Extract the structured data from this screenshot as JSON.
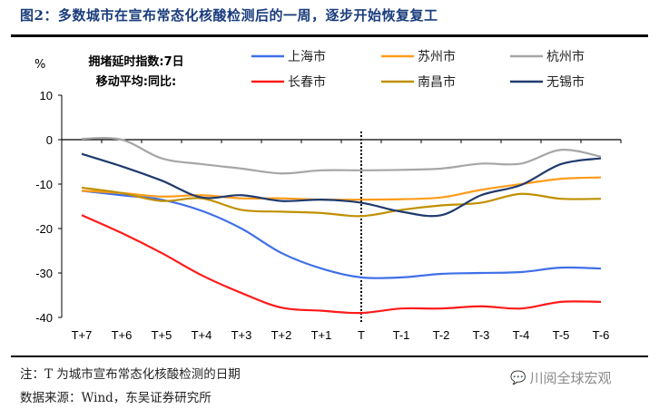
{
  "title": "图2：多数城市在宣布常态化核酸检测后的一周，逐步开始恢复复工",
  "note": "注：T 为城市宣布常态化核酸检测的日期",
  "source": "数据来源：Wind，东吴证券研究所",
  "watermark": {
    "icon": "wechat-icon",
    "icon_glyph": "💬",
    "text": "川阅全球宏观"
  },
  "chart_data": {
    "type": "line",
    "title": "图2：多数城市在宣布常态化核酸检测后的一周，逐步开始恢复复工",
    "ylabel": "%",
    "xlabel": "",
    "indicator_line1": "拥堵延时指数:7日",
    "indicator_line2": "移动平均:同比:",
    "ylim": [
      -40,
      10
    ],
    "yticks": [
      10,
      0,
      -10,
      -20,
      -30,
      -40
    ],
    "ytick_labels": [
      "10",
      "0",
      "-10",
      "-20",
      "-30",
      "-40"
    ],
    "categories": [
      "T+7",
      "T+6",
      "T+5",
      "T+4",
      "T+3",
      "T+2",
      "T+1",
      "T",
      "T-1",
      "T-2",
      "T-3",
      "T-4",
      "T-5",
      "T-6"
    ],
    "reference_line": {
      "category": "T",
      "style": "dotted",
      "color": "#000000"
    },
    "grid": false,
    "legend_position": "top-right",
    "series": [
      {
        "name": "上海市",
        "color": "#3f6fe8",
        "values": [
          -11.5,
          -12.5,
          -13.5,
          -16,
          -20,
          -25.5,
          -29,
          -31,
          -31,
          -30.2,
          -30,
          -29.8,
          -28.8,
          -29
        ]
      },
      {
        "name": "苏州市",
        "color": "#ff9c1a",
        "values": [
          -11.5,
          -12,
          -12.8,
          -12.5,
          -13.2,
          -13.2,
          -13.5,
          -13.5,
          -13.4,
          -13,
          -11.3,
          -10,
          -8.8,
          -8.5
        ]
      },
      {
        "name": "杭州市",
        "color": "#a6a6a6",
        "values": [
          0.2,
          0,
          -4.2,
          -5.5,
          -6.5,
          -7.6,
          -6.9,
          -6.9,
          -6.8,
          -6.5,
          -5.4,
          -5.4,
          -2.3,
          -3.8
        ]
      },
      {
        "name": "长春市",
        "color": "#ff1a1a",
        "values": [
          -17,
          -21,
          -25.5,
          -30.5,
          -34.5,
          -37.8,
          -38.5,
          -39,
          -38,
          -38,
          -37.5,
          -38,
          -36.5,
          -36.5
        ]
      },
      {
        "name": "南昌市",
        "color": "#c09000",
        "values": [
          -10.8,
          -12,
          -13.8,
          -13.2,
          -15.8,
          -16.2,
          -16.5,
          -17.2,
          -15.8,
          -14.8,
          -14.2,
          -12.2,
          -13.3,
          -13.3
        ]
      },
      {
        "name": "无锡市",
        "color": "#1f3a6e",
        "values": [
          -3.2,
          -6,
          -9.2,
          -13,
          -12.5,
          -13.8,
          -13.5,
          -14.2,
          -16.2,
          -17,
          -12.5,
          -10.2,
          -5.5,
          -4.2
        ]
      }
    ]
  }
}
